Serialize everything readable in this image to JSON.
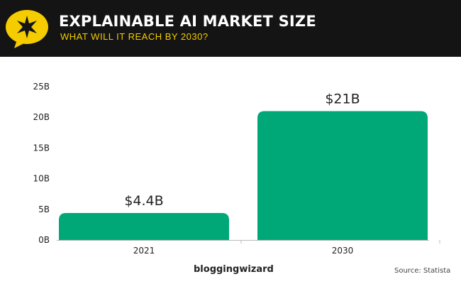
{
  "header": {
    "title": "EXPLAINABLE AI MARKET SIZE",
    "subtitle": "WHAT WILL IT REACH BY 2030?",
    "icon": "star-speech-bubble-icon"
  },
  "chart_data": {
    "type": "bar",
    "title": "EXPLAINABLE AI MARKET SIZE",
    "categories": [
      "2021",
      "2030"
    ],
    "values": [
      4.4,
      21
    ],
    "data_labels": [
      "$4.4B",
      "$21B"
    ],
    "yticks": [
      "0B",
      "5B",
      "10B",
      "15B",
      "20B",
      "25B"
    ],
    "ytick_values": [
      0,
      5,
      10,
      15,
      20,
      25
    ],
    "ylim": [
      0,
      25
    ],
    "xlabel": "",
    "ylabel": "",
    "grid": false,
    "bar_color": "#00a878"
  },
  "footer": {
    "brand": "bloggingwizard",
    "source": "Source: Statista"
  }
}
